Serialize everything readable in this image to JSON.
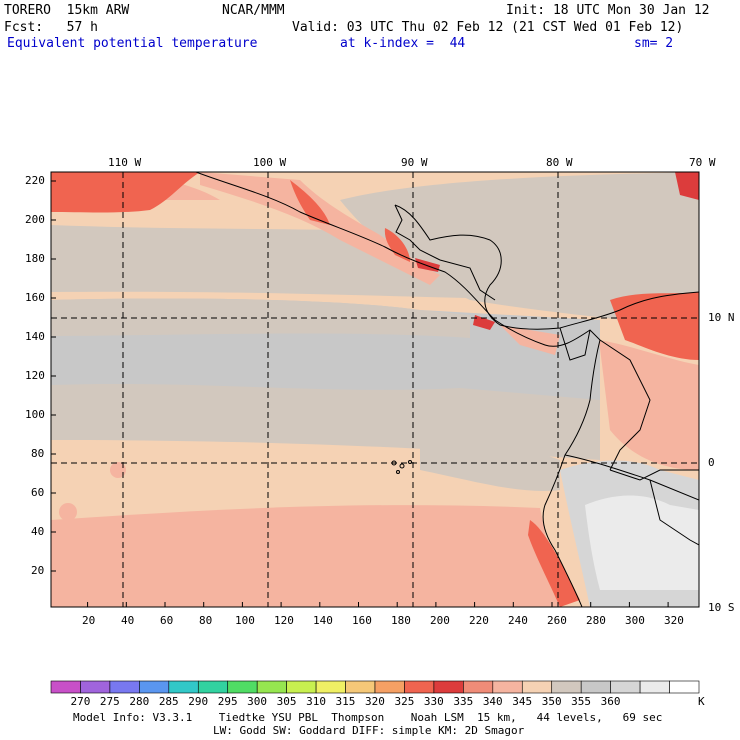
{
  "header": {
    "model": "TORERO  15km ARW",
    "org": "NCAR/MMM",
    "init": "Init: 18 UTC Mon 30 Jan 12",
    "fcst": "Fcst:   57 h",
    "valid": "Valid: 03 UTC Thu 02 Feb 12 (21 CST Wed 01 Feb 12)",
    "field": "Equivalent potential temperature",
    "level": "at k-index =  44",
    "smooth": "sm= 2"
  },
  "axes": {
    "lon_labels": [
      "110 W",
      "100 W",
      "90 W",
      "80 W",
      "70 W"
    ],
    "lat_labels": [
      "10 N",
      "0",
      "10 S"
    ],
    "x_ticks": [
      "20",
      "40",
      "60",
      "80",
      "100",
      "120",
      "140",
      "160",
      "180",
      "200",
      "220",
      "240",
      "260",
      "280",
      "300",
      "320"
    ],
    "y_ticks": [
      "220",
      "200",
      "180",
      "160",
      "140",
      "120",
      "100",
      "80",
      "60",
      "40",
      "20"
    ]
  },
  "colorbar": {
    "values": [
      "270",
      "275",
      "280",
      "285",
      "290",
      "295",
      "300",
      "305",
      "310",
      "315",
      "320",
      "325",
      "330",
      "335",
      "340",
      "345",
      "350",
      "355",
      "360"
    ],
    "unit": "K",
    "colors": [
      "#c850c8",
      "#a064dc",
      "#7878f0",
      "#5a96f0",
      "#32c8c8",
      "#32d2a0",
      "#50dc64",
      "#96e650",
      "#c8f050",
      "#f0f064",
      "#f5c878",
      "#f5a064",
      "#f06450",
      "#dc3c3c",
      "#f08c78",
      "#f5b4a0",
      "#f5d2b4",
      "#d2c8be",
      "#c8c8c8",
      "#d6d6d6",
      "#ebebeb",
      "#ffffff"
    ]
  },
  "footer": {
    "line1": "Model Info: V3.3.1    Tiedtke YSU PBL  Thompson    Noah LSM  15 km,   44 levels,   69 sec",
    "line2": "LW: Godd SW: Goddard DIFF: simple KM: 2D Smagor"
  }
}
